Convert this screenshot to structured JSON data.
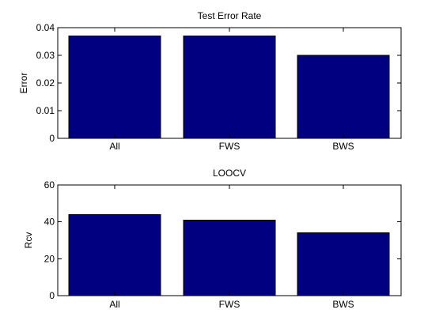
{
  "colors": {
    "bar": "#000080",
    "text": "#000000",
    "background": "#ffffff"
  },
  "chart_data": [
    {
      "type": "bar",
      "title": "Test Error Rate",
      "xlabel": "",
      "ylabel": "Error",
      "categories": [
        "All",
        "FWS",
        "BWS"
      ],
      "values": [
        0.037,
        0.037,
        0.03
      ],
      "ylim": [
        0,
        0.04
      ],
      "yticks": [
        0,
        0.01,
        0.02,
        0.03,
        0.04
      ],
      "ytick_labels": [
        "0",
        "0.01",
        "0.02",
        "0.03",
        "0.04"
      ],
      "grid": false
    },
    {
      "type": "bar",
      "title": "LOOCV",
      "xlabel": "",
      "ylabel": "Rcv",
      "categories": [
        "All",
        "FWS",
        "BWS"
      ],
      "values": [
        44,
        41,
        34
      ],
      "ylim": [
        0,
        60
      ],
      "yticks": [
        0,
        20,
        40,
        60
      ],
      "ytick_labels": [
        "0",
        "20",
        "40",
        "60"
      ],
      "grid": false
    }
  ]
}
